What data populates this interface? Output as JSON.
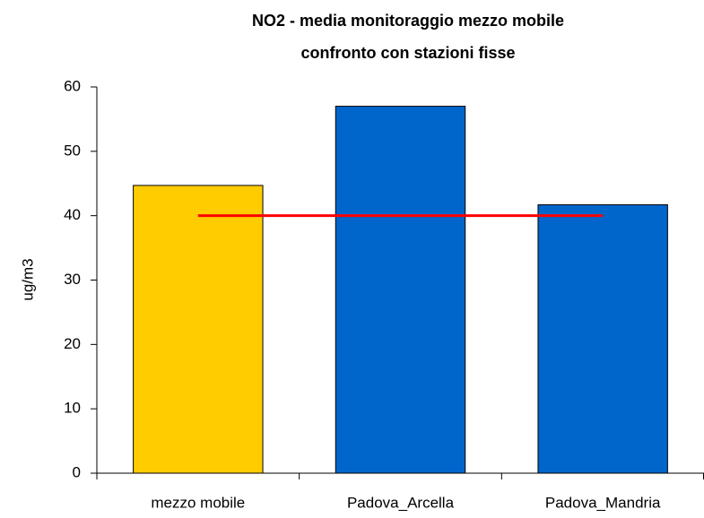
{
  "chart_data": {
    "type": "bar",
    "title": [
      "NO2 - media monitoraggio mezzo mobile",
      "confronto con stazioni fisse"
    ],
    "y_label": "ug/m3",
    "categories": [
      "mezzo mobile",
      "Padova_Arcella",
      "Padova_Mandria"
    ],
    "series": [
      {
        "type": "bar",
        "colors": [
          "#ffcc00",
          "#0066cc",
          "#0066cc"
        ],
        "values": [
          44.7,
          57,
          41.7
        ]
      },
      {
        "type": "line",
        "color": "#ff0000",
        "values": [
          40,
          40,
          40
        ]
      }
    ],
    "ylim": [
      0,
      60
    ],
    "yticks": [
      0,
      10,
      20,
      30,
      40,
      50,
      60
    ],
    "grid": false
  }
}
